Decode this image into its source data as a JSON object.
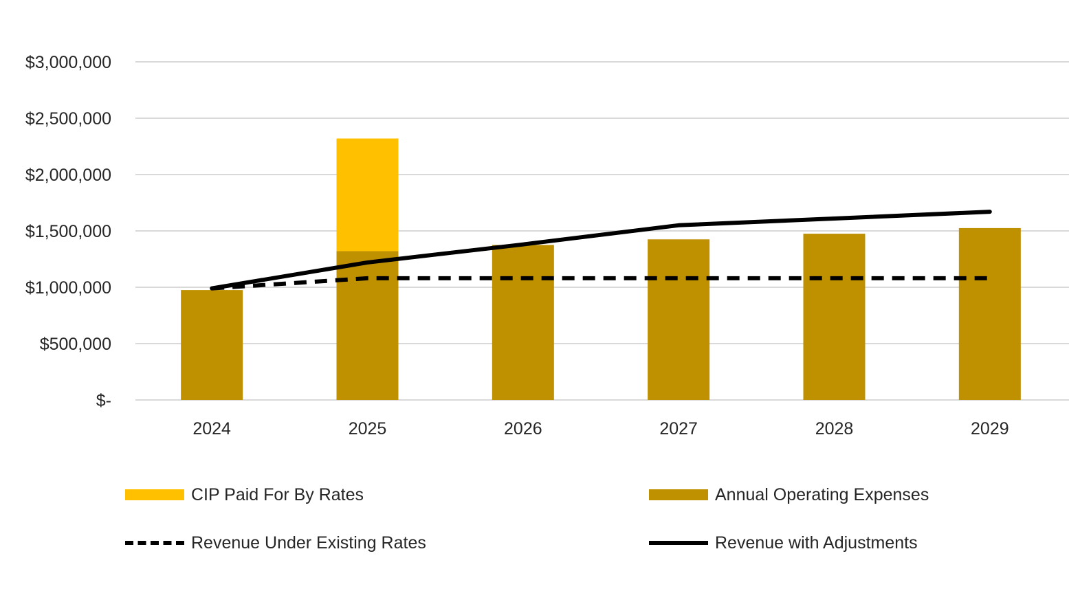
{
  "chart_data": {
    "type": "bar",
    "categories": [
      "2024",
      "2025",
      "2026",
      "2027",
      "2028",
      "2029"
    ],
    "ylim": [
      0,
      3000000
    ],
    "y_ticks": [
      {
        "value": 0,
        "label": "$-"
      },
      {
        "value": 500000,
        "label": "$500,000"
      },
      {
        "value": 1000000,
        "label": "$1,000,000"
      },
      {
        "value": 1500000,
        "label": "$1,500,000"
      },
      {
        "value": 2000000,
        "label": "$2,000,000"
      },
      {
        "value": 2500000,
        "label": "$2,500,000"
      },
      {
        "value": 3000000,
        "label": "$3,000,000"
      }
    ],
    "grid": true,
    "legend_position": "bottom",
    "stacked_bars": [
      {
        "name": "Annual Operating Expenses",
        "color": "#BF9000",
        "values": [
          975000,
          1320000,
          1375000,
          1425000,
          1475000,
          1525000
        ]
      },
      {
        "name": "CIP Paid For By Rates",
        "color": "#FFC000",
        "values": [
          0,
          1000000,
          0,
          0,
          0,
          0
        ]
      }
    ],
    "lines": [
      {
        "name": "Revenue Under Existing Rates",
        "color": "#000000",
        "style": "dashed",
        "values": [
          990000,
          1080000,
          1080000,
          1080000,
          1080000,
          1080000
        ]
      },
      {
        "name": "Revenue with Adjustments",
        "color": "#000000",
        "style": "solid",
        "values": [
          990000,
          1220000,
          1380000,
          1550000,
          1610000,
          1670000
        ]
      }
    ]
  },
  "legend": [
    {
      "label": "CIP Paid For By Rates",
      "kind": "box",
      "color": "#FFC000"
    },
    {
      "label": "Annual Operating Expenses",
      "kind": "box",
      "color": "#BF9000"
    },
    {
      "label": "Revenue Under Existing Rates",
      "kind": "dashed",
      "color": "#000000"
    },
    {
      "label": "Revenue with Adjustments",
      "kind": "solid",
      "color": "#000000"
    }
  ]
}
